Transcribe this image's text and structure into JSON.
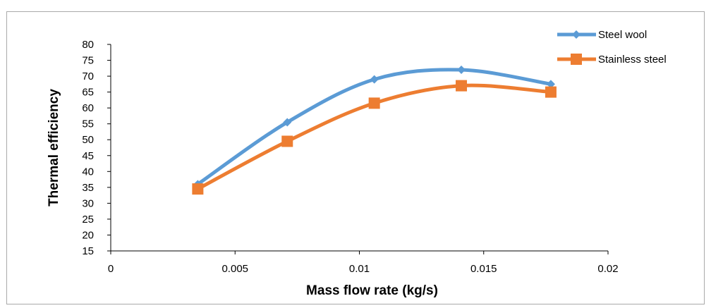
{
  "chart_data": {
    "type": "line",
    "title": "",
    "xlabel": "Mass flow rate (kg/s)",
    "ylabel": "Thermal efficiency",
    "xlim": [
      0,
      0.02
    ],
    "ylim": [
      15,
      80
    ],
    "x_ticks": [
      "0",
      "0.005",
      "0.01",
      "0.015",
      "0.02"
    ],
    "y_ticks": [
      "15",
      "20",
      "25",
      "30",
      "35",
      "40",
      "45",
      "50",
      "55",
      "60",
      "65",
      "70",
      "75",
      "80"
    ],
    "grid": false,
    "smooth": true,
    "legend_position": "top-right",
    "series": [
      {
        "name": "Steel wool",
        "color": "#5b9bd5",
        "marker": "diamond",
        "x": [
          0.0035,
          0.0071,
          0.0106,
          0.0141,
          0.0177
        ],
        "y": [
          36,
          55.5,
          69,
          72,
          67.5
        ]
      },
      {
        "name": "Stainless steel",
        "color": "#ed7d31",
        "marker": "square",
        "x": [
          0.0035,
          0.0071,
          0.0106,
          0.0141,
          0.0177
        ],
        "y": [
          34.5,
          49.5,
          61.5,
          67,
          65
        ]
      }
    ]
  }
}
